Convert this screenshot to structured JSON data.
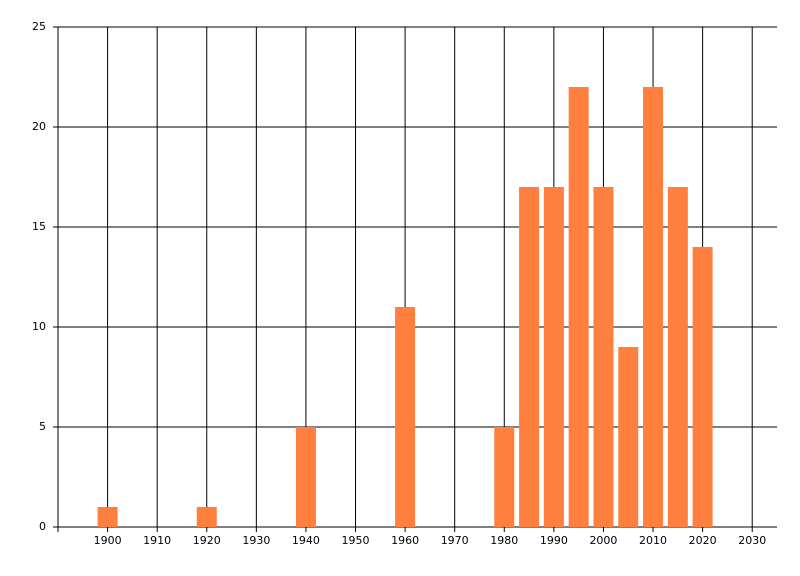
{
  "chart_data": {
    "type": "bar",
    "x": [
      1900,
      1920,
      1940,
      1960,
      1980,
      1985,
      1990,
      1995,
      2000,
      2005,
      2010,
      2015,
      2020
    ],
    "values": [
      1,
      1,
      5,
      11,
      5,
      17,
      17,
      22,
      17,
      9,
      22,
      17,
      14
    ],
    "color": "#ff7f3f",
    "xlim": [
      1890,
      2035
    ],
    "xticks": [
      1900,
      1910,
      1920,
      1930,
      1940,
      1950,
      1960,
      1970,
      1980,
      1990,
      2000,
      2010,
      2020,
      2030
    ],
    "ylim": [
      0,
      25
    ],
    "yticks": [
      0,
      5,
      10,
      15,
      20,
      25
    ],
    "grid": true
  }
}
